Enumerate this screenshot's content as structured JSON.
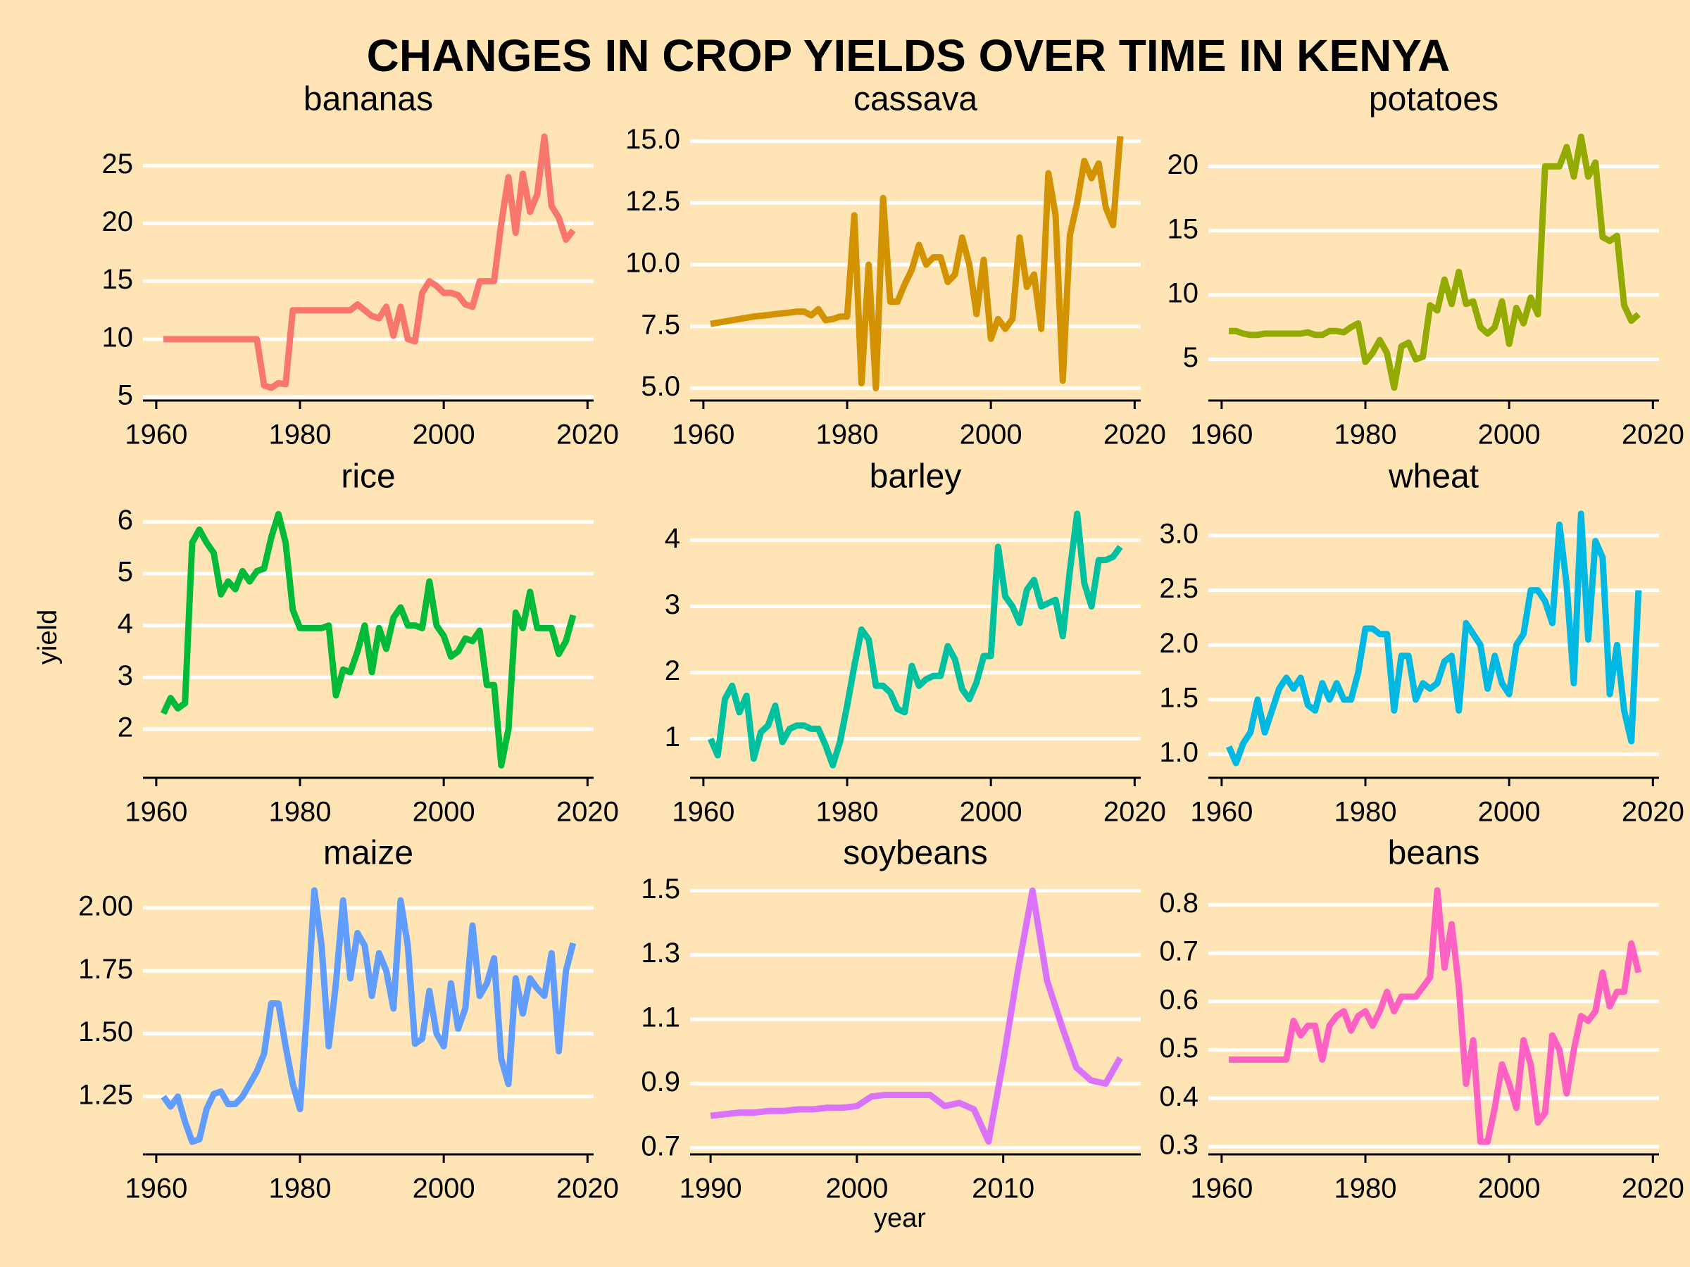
{
  "title": "CHANGES IN CROP YIELDS OVER TIME IN KENYA",
  "xlabel": "year",
  "ylabel": "yield",
  "background": "#ffe4b5",
  "chart_data": [
    {
      "type": "line",
      "title": "bananas",
      "color": "#f8766d",
      "grid": true,
      "x": [
        1961,
        1962,
        1963,
        1964,
        1965,
        1966,
        1967,
        1968,
        1969,
        1970,
        1971,
        1972,
        1973,
        1974,
        1975,
        1976,
        1977,
        1978,
        1979,
        1980,
        1981,
        1982,
        1983,
        1984,
        1985,
        1986,
        1987,
        1988,
        1989,
        1990,
        1991,
        1992,
        1993,
        1994,
        1995,
        1996,
        1997,
        1998,
        1999,
        2000,
        2001,
        2002,
        2003,
        2004,
        2005,
        2006,
        2007,
        2008,
        2009,
        2010,
        2011,
        2012,
        2013,
        2014,
        2015,
        2016,
        2017,
        2018
      ],
      "values": [
        10,
        10,
        10,
        10,
        10,
        10,
        10,
        10,
        10,
        10,
        10,
        10,
        10,
        10,
        6,
        5.8,
        6.2,
        6.1,
        12.5,
        12.5,
        12.5,
        12.5,
        12.5,
        12.5,
        12.5,
        12.5,
        12.5,
        13,
        12.5,
        12,
        11.8,
        12.8,
        10.3,
        12.8,
        10,
        9.8,
        14,
        15,
        14.6,
        14,
        14,
        13.8,
        13,
        12.8,
        15,
        15,
        15,
        20,
        24,
        19.2,
        24.3,
        21,
        22.5,
        27.5,
        21.5,
        20.5,
        18.6,
        19.4
      ],
      "xlim": [
        1958.15,
        2020.85
      ],
      "xticks": [
        1960,
        1980,
        2000,
        2020
      ],
      "ylim": [
        4.7,
        28.6
      ],
      "yticks": [
        5,
        10,
        15,
        20,
        25
      ]
    },
    {
      "type": "line",
      "title": "cassava",
      "color": "#d39200",
      "grid": true,
      "x": [
        1961,
        1962,
        1963,
        1964,
        1965,
        1966,
        1967,
        1968,
        1969,
        1970,
        1971,
        1972,
        1973,
        1974,
        1975,
        1976,
        1977,
        1978,
        1979,
        1980,
        1981,
        1982,
        1983,
        1984,
        1985,
        1986,
        1987,
        1988,
        1989,
        1990,
        1991,
        1992,
        1993,
        1994,
        1995,
        1996,
        1997,
        1998,
        1999,
        2000,
        2001,
        2002,
        2003,
        2004,
        2005,
        2006,
        2007,
        2008,
        2009,
        2010,
        2011,
        2012,
        2013,
        2014,
        2015,
        2016,
        2017,
        2018
      ],
      "values": [
        7.6,
        7.65,
        7.7,
        7.75,
        7.8,
        7.85,
        7.9,
        7.93,
        7.96,
        8,
        8.03,
        8.06,
        8.1,
        8.1,
        7.95,
        8.2,
        7.75,
        7.8,
        7.9,
        7.9,
        12,
        5.2,
        10,
        5,
        12.7,
        8.5,
        8.5,
        9.2,
        9.8,
        10.8,
        10,
        10.3,
        10.3,
        9.3,
        9.6,
        11.1,
        10,
        8,
        10.2,
        7,
        7.8,
        7.4,
        7.8,
        11.1,
        9.1,
        9.6,
        7.4,
        13.7,
        12,
        5.3,
        11.2,
        12.5,
        14.2,
        13.5,
        14.1,
        12.3,
        11.6,
        15.2
      ],
      "xlim": [
        1958.15,
        2020.85
      ],
      "xticks": [
        1960,
        1980,
        2000,
        2020
      ],
      "ylim": [
        4.5,
        15.7
      ],
      "yticks": [
        {
          "value": 5,
          "label": "5.0"
        },
        7.5,
        {
          "value": 10,
          "label": "10.0"
        },
        12.5,
        {
          "value": 15,
          "label": "15.0"
        }
      ]
    },
    {
      "type": "line",
      "title": "potatoes",
      "color": "#93aa00",
      "grid": true,
      "x": [
        1961,
        1962,
        1963,
        1964,
        1965,
        1966,
        1967,
        1968,
        1969,
        1970,
        1971,
        1972,
        1973,
        1974,
        1975,
        1976,
        1977,
        1978,
        1979,
        1980,
        1981,
        1982,
        1983,
        1984,
        1985,
        1986,
        1987,
        1988,
        1989,
        1990,
        1991,
        1992,
        1993,
        1994,
        1995,
        1996,
        1997,
        1998,
        1999,
        2000,
        2001,
        2002,
        2003,
        2004,
        2005,
        2006,
        2007,
        2008,
        2009,
        2010,
        2011,
        2012,
        2013,
        2014,
        2015,
        2016,
        2017,
        2018
      ],
      "values": [
        7.2,
        7.2,
        7,
        6.9,
        6.9,
        7,
        7,
        7,
        7,
        7,
        7,
        7.1,
        6.9,
        6.9,
        7.2,
        7.2,
        7.1,
        7.5,
        7.8,
        4.8,
        5.5,
        6.5,
        5.5,
        2.8,
        6,
        6.3,
        5,
        5.2,
        9.2,
        8.8,
        11.2,
        9.3,
        11.8,
        9.3,
        9.5,
        7.5,
        7,
        7.5,
        9.5,
        6.2,
        9,
        7.8,
        9.8,
        8.5,
        20,
        20,
        20,
        21.5,
        19.2,
        22.3,
        19.2,
        20.3,
        14.5,
        14.2,
        14.6,
        9.2,
        8,
        8.5
      ],
      "xlim": [
        1958.15,
        2020.85
      ],
      "xticks": [
        1960,
        1980,
        2000,
        2020
      ],
      "ylim": [
        1.8,
        23.3
      ],
      "yticks": [
        5,
        10,
        15,
        20
      ]
    },
    {
      "type": "line",
      "title": "rice",
      "color": "#00ba38",
      "grid": true,
      "x": [
        1961,
        1962,
        1963,
        1964,
        1965,
        1966,
        1967,
        1968,
        1969,
        1970,
        1971,
        1972,
        1973,
        1974,
        1975,
        1976,
        1977,
        1978,
        1979,
        1980,
        1981,
        1982,
        1983,
        1984,
        1985,
        1986,
        1987,
        1988,
        1989,
        1990,
        1991,
        1992,
        1993,
        1994,
        1995,
        1996,
        1997,
        1998,
        1999,
        2000,
        2001,
        2002,
        2003,
        2004,
        2005,
        2006,
        2007,
        2008,
        2009,
        2010,
        2011,
        2012,
        2013,
        2014,
        2015,
        2016,
        2017,
        2018
      ],
      "values": [
        2.3,
        2.6,
        2.4,
        2.5,
        5.6,
        5.85,
        5.6,
        5.4,
        4.6,
        4.85,
        4.7,
        5.05,
        4.85,
        5.05,
        5.1,
        5.7,
        6.15,
        5.6,
        4.3,
        3.95,
        3.95,
        3.95,
        3.95,
        4,
        2.65,
        3.15,
        3.1,
        3.5,
        4,
        3.1,
        3.95,
        3.55,
        4.15,
        4.35,
        4,
        4,
        3.95,
        4.85,
        4,
        3.8,
        3.4,
        3.5,
        3.75,
        3.7,
        3.9,
        2.85,
        2.85,
        1.3,
        2,
        4.25,
        3.95,
        4.65,
        3.95,
        3.95,
        3.95,
        3.45,
        3.7,
        4.2
      ],
      "xlim": [
        1958.15,
        2020.85
      ],
      "xticks": [
        1960,
        1980,
        2000,
        2020
      ],
      "ylim": [
        1.06,
        6.4
      ],
      "yticks": [
        2,
        3,
        4,
        5,
        6
      ]
    },
    {
      "type": "line",
      "title": "barley",
      "color": "#00c19f",
      "grid": true,
      "x": [
        1961,
        1962,
        1963,
        1964,
        1965,
        1966,
        1967,
        1968,
        1969,
        1970,
        1971,
        1972,
        1973,
        1974,
        1975,
        1976,
        1977,
        1978,
        1979,
        1980,
        1981,
        1982,
        1983,
        1984,
        1985,
        1986,
        1987,
        1988,
        1989,
        1990,
        1991,
        1992,
        1993,
        1994,
        1995,
        1996,
        1997,
        1998,
        1999,
        2000,
        2001,
        2002,
        2003,
        2004,
        2005,
        2006,
        2007,
        2008,
        2009,
        2010,
        2011,
        2012,
        2013,
        2014,
        2015,
        2016,
        2017,
        2018
      ],
      "values": [
        1,
        0.75,
        1.6,
        1.8,
        1.4,
        1.65,
        0.7,
        1.1,
        1.2,
        1.5,
        0.95,
        1.15,
        1.2,
        1.2,
        1.15,
        1.15,
        0.9,
        0.6,
        0.95,
        1.5,
        2.1,
        2.65,
        2.5,
        1.8,
        1.8,
        1.7,
        1.45,
        1.4,
        2.1,
        1.8,
        1.9,
        1.95,
        1.95,
        2.4,
        2.2,
        1.75,
        1.6,
        1.85,
        2.25,
        2.25,
        3.9,
        3.15,
        3,
        2.75,
        3.25,
        3.4,
        3,
        3.05,
        3.1,
        2.55,
        3.55,
        4.4,
        3.35,
        3,
        3.7,
        3.7,
        3.75,
        3.9
      ],
      "xlim": [
        1958.15,
        2020.85
      ],
      "xticks": [
        1960,
        1980,
        2000,
        2020
      ],
      "ylim": [
        0.41,
        4.59
      ],
      "yticks": [
        1,
        2,
        3,
        4
      ]
    },
    {
      "type": "line",
      "title": "wheat",
      "color": "#00b9e3",
      "grid": true,
      "x": [
        1961,
        1962,
        1963,
        1964,
        1965,
        1966,
        1967,
        1968,
        1969,
        1970,
        1971,
        1972,
        1973,
        1974,
        1975,
        1976,
        1977,
        1978,
        1979,
        1980,
        1981,
        1982,
        1983,
        1984,
        1985,
        1986,
        1987,
        1988,
        1989,
        1990,
        1991,
        1992,
        1993,
        1994,
        1995,
        1996,
        1997,
        1998,
        1999,
        2000,
        2001,
        2002,
        2003,
        2004,
        2005,
        2006,
        2007,
        2008,
        2009,
        2010,
        2011,
        2012,
        2013,
        2014,
        2015,
        2016,
        2017,
        2018
      ],
      "values": [
        1.07,
        0.92,
        1.1,
        1.2,
        1.5,
        1.2,
        1.4,
        1.6,
        1.7,
        1.6,
        1.7,
        1.45,
        1.4,
        1.65,
        1.5,
        1.65,
        1.5,
        1.5,
        1.75,
        2.15,
        2.15,
        2.1,
        2.1,
        1.4,
        1.9,
        1.9,
        1.5,
        1.65,
        1.6,
        1.65,
        1.85,
        1.9,
        1.4,
        2.2,
        2.1,
        2,
        1.6,
        1.9,
        1.65,
        1.55,
        2,
        2.1,
        2.5,
        2.5,
        2.4,
        2.2,
        3.1,
        2.55,
        1.65,
        3.2,
        2.05,
        2.95,
        2.8,
        1.55,
        2,
        1.4,
        1.12,
        2.5
      ],
      "xlim": [
        1958.15,
        2020.85
      ],
      "xticks": [
        1960,
        1980,
        2000,
        2020
      ],
      "ylim": [
        0.785,
        3.315
      ],
      "yticks": [
        {
          "value": 1,
          "label": "1.0"
        },
        1.5,
        {
          "value": 2,
          "label": "2.0"
        },
        2.5,
        {
          "value": 3,
          "label": "3.0"
        }
      ]
    },
    {
      "type": "line",
      "title": "maize",
      "color": "#619cff",
      "grid": true,
      "x": [
        1961,
        1962,
        1963,
        1964,
        1965,
        1966,
        1967,
        1968,
        1969,
        1970,
        1971,
        1972,
        1973,
        1974,
        1975,
        1976,
        1977,
        1978,
        1979,
        1980,
        1981,
        1982,
        1983,
        1984,
        1985,
        1986,
        1987,
        1988,
        1989,
        1990,
        1991,
        1992,
        1993,
        1994,
        1995,
        1996,
        1997,
        1998,
        1999,
        2000,
        2001,
        2002,
        2003,
        2004,
        2005,
        2006,
        2007,
        2008,
        2009,
        2010,
        2011,
        2012,
        2013,
        2014,
        2015,
        2016,
        2017,
        2018
      ],
      "values": [
        1.25,
        1.21,
        1.25,
        1.15,
        1.07,
        1.08,
        1.2,
        1.26,
        1.27,
        1.22,
        1.22,
        1.25,
        1.3,
        1.35,
        1.42,
        1.62,
        1.62,
        1.45,
        1.3,
        1.2,
        1.6,
        2.07,
        1.85,
        1.45,
        1.7,
        2.03,
        1.72,
        1.9,
        1.85,
        1.65,
        1.82,
        1.75,
        1.6,
        2.03,
        1.85,
        1.46,
        1.48,
        1.67,
        1.5,
        1.45,
        1.7,
        1.52,
        1.6,
        1.93,
        1.65,
        1.7,
        1.8,
        1.4,
        1.3,
        1.72,
        1.58,
        1.72,
        1.68,
        1.65,
        1.82,
        1.43,
        1.75,
        1.86
      ],
      "xlim": [
        1958.15,
        2020.85
      ],
      "xticks": [
        1960,
        1980,
        2000,
        2020
      ],
      "ylim": [
        1.02,
        2.12
      ],
      "yticks": [
        1.25,
        {
          "value": 1.5,
          "label": "1.50"
        },
        1.75,
        {
          "value": 2,
          "label": "2.00"
        }
      ]
    },
    {
      "type": "line",
      "title": "soybeans",
      "color": "#db72fb",
      "grid": true,
      "x": [
        1990,
        1991,
        1992,
        1993,
        1994,
        1995,
        1996,
        1997,
        1998,
        1999,
        2000,
        2001,
        2002,
        2003,
        2004,
        2005,
        2006,
        2007,
        2008,
        2009,
        2010,
        2011,
        2012,
        2013,
        2014,
        2015,
        2016,
        2017,
        2018
      ],
      "values": [
        0.8,
        0.805,
        0.81,
        0.81,
        0.815,
        0.815,
        0.82,
        0.82,
        0.825,
        0.825,
        0.83,
        0.86,
        0.865,
        0.865,
        0.865,
        0.865,
        0.83,
        0.84,
        0.82,
        0.72,
        0.97,
        1.25,
        1.5,
        1.22,
        1.08,
        0.95,
        0.91,
        0.9,
        0.98
      ],
      "xlim": [
        1988.6,
        2019.4
      ],
      "xticks": [
        1990,
        2000,
        2010
      ],
      "ylim": [
        0.68,
        1.54
      ],
      "yticks": [
        0.7,
        0.9,
        1.1,
        1.3,
        1.5
      ]
    },
    {
      "type": "line",
      "title": "beans",
      "color": "#ff61c3",
      "grid": true,
      "x": [
        1961,
        1962,
        1963,
        1964,
        1965,
        1966,
        1967,
        1968,
        1969,
        1970,
        1971,
        1972,
        1973,
        1974,
        1975,
        1976,
        1977,
        1978,
        1979,
        1980,
        1981,
        1982,
        1983,
        1984,
        1985,
        1986,
        1987,
        1988,
        1989,
        1990,
        1991,
        1992,
        1993,
        1994,
        1995,
        1996,
        1997,
        1998,
        1999,
        2000,
        2001,
        2002,
        2003,
        2004,
        2005,
        2006,
        2007,
        2008,
        2009,
        2010,
        2011,
        2012,
        2013,
        2014,
        2015,
        2016,
        2017,
        2018
      ],
      "values": [
        0.48,
        0.48,
        0.48,
        0.48,
        0.48,
        0.48,
        0.48,
        0.48,
        0.48,
        0.56,
        0.53,
        0.55,
        0.55,
        0.48,
        0.55,
        0.57,
        0.58,
        0.54,
        0.57,
        0.58,
        0.55,
        0.58,
        0.62,
        0.58,
        0.61,
        0.61,
        0.61,
        0.63,
        0.65,
        0.83,
        0.67,
        0.76,
        0.63,
        0.43,
        0.52,
        0.31,
        0.31,
        0.38,
        0.47,
        0.43,
        0.38,
        0.52,
        0.47,
        0.35,
        0.37,
        0.53,
        0.5,
        0.41,
        0.5,
        0.57,
        0.56,
        0.58,
        0.66,
        0.59,
        0.62,
        0.62,
        0.72,
        0.66
      ],
      "xlim": [
        1958.15,
        2020.85
      ],
      "xticks": [
        1960,
        1980,
        2000,
        2020
      ],
      "ylim": [
        0.284,
        0.856
      ],
      "yticks": [
        0.3,
        0.4,
        0.5,
        0.6,
        0.7,
        0.8
      ]
    }
  ]
}
